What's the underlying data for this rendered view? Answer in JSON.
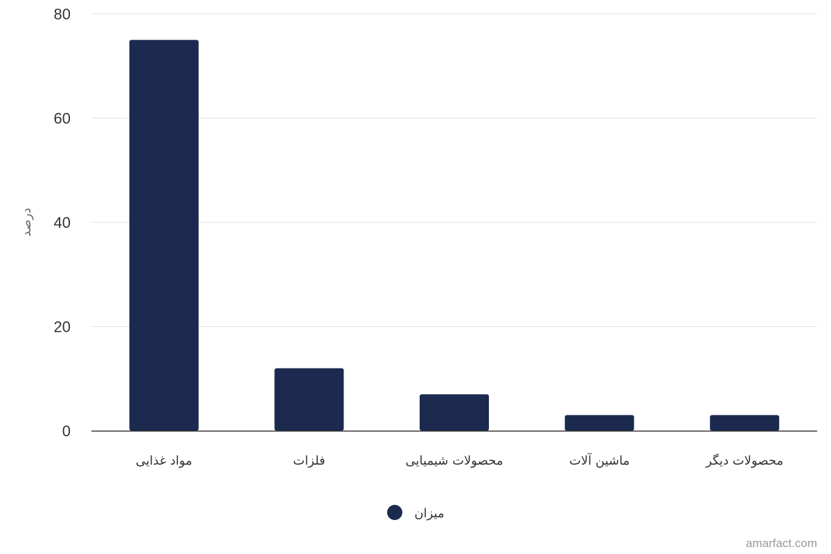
{
  "chart_data": {
    "type": "bar",
    "categories": [
      "مواد غذایی",
      "فلزات",
      "محصولات شیمیایی",
      "ماشین آلات",
      "محصولات دیگر"
    ],
    "series": [
      {
        "name": "میزان",
        "values": [
          75,
          12,
          7,
          3,
          3
        ],
        "color": "#1b2a4e"
      }
    ],
    "title": "",
    "xlabel": "",
    "ylabel": "درصد",
    "ylim": [
      0,
      80
    ],
    "yticks": [
      0,
      20,
      40,
      60,
      80
    ],
    "grid": true,
    "legend_position": "bottom-center"
  },
  "credits": "amarfact.com"
}
